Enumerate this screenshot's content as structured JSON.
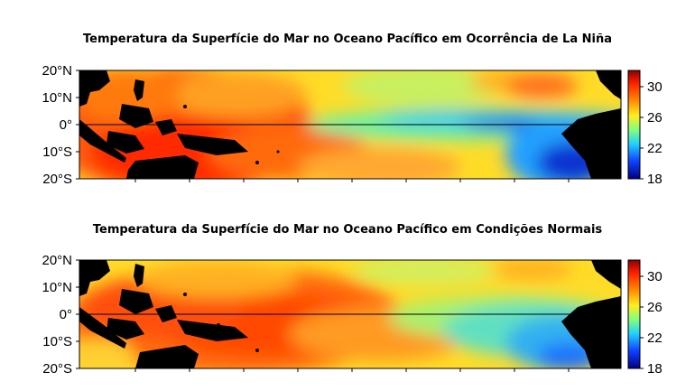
{
  "maps": [
    {
      "title": "Temperatura da Superfície do Mar no Oceano Pacífico em Ocorrência de La Niña",
      "lat_labels": [
        "20°N",
        "10°N",
        "0°",
        "10°S",
        "20°S"
      ],
      "colorbar_labels": [
        "30",
        "26",
        "22",
        "18"
      ],
      "colorbar_range": [
        18,
        32
      ],
      "condition": "La Niña"
    },
    {
      "title": "Temperatura da Superfície do Mar no Oceano Pacífico em Condições Normais",
      "lat_labels": [
        "20°N",
        "10°N",
        "0°",
        "10°S",
        "20°S"
      ],
      "colorbar_labels": [
        "30",
        "26",
        "22",
        "18"
      ],
      "colorbar_range": [
        18,
        32
      ],
      "condition": "Normal"
    }
  ],
  "colors": {
    "land": "#000000",
    "warm": "#e02000",
    "hot": "#ff4500",
    "orange": "#ff8c00",
    "yellow": "#ffe020",
    "cyan": "#40e0d0",
    "blue": "#1e64ff",
    "navy": "#00008b"
  }
}
